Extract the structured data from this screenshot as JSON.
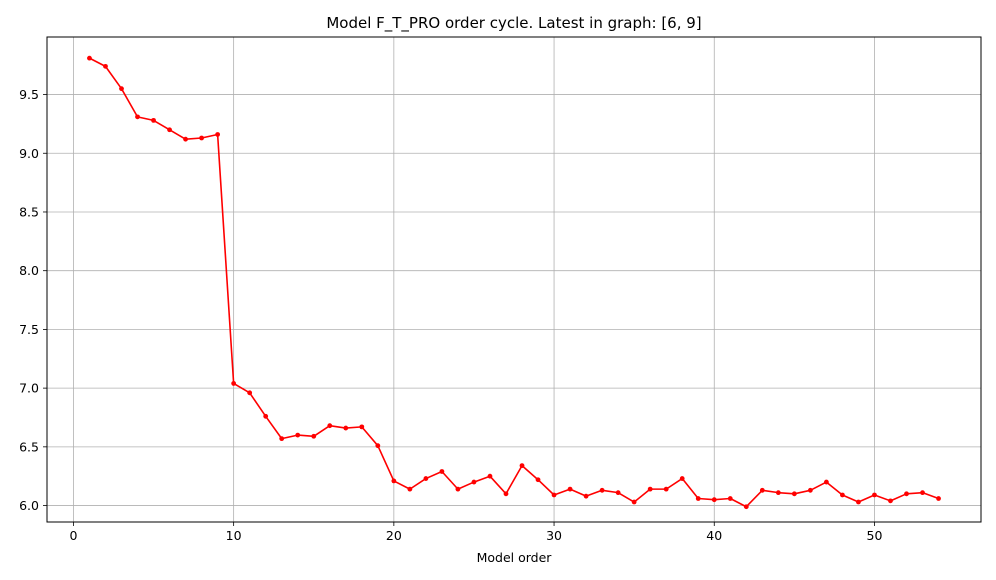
{
  "chart_data": {
    "type": "line",
    "title": "Model F_T_PRO order cycle. Latest in graph: [6, 9]",
    "xlabel": "Model order",
    "ylabel": "",
    "xlim": [
      -1.65,
      56.65
    ],
    "ylim": [
      5.86,
      9.99
    ],
    "grid": true,
    "x_ticks": [
      0,
      10,
      20,
      30,
      40,
      50
    ],
    "y_ticks": [
      6.0,
      6.5,
      7.0,
      7.5,
      8.0,
      8.5,
      9.0,
      9.5
    ],
    "x_tick_labels": [
      "0",
      "10",
      "20",
      "30",
      "40",
      "50"
    ],
    "y_tick_labels": [
      "6.0",
      "6.5",
      "7.0",
      "7.5",
      "8.0",
      "8.5",
      "9.0",
      "9.5"
    ],
    "series": [
      {
        "color": "#ff0000",
        "marker": "circle",
        "x": [
          1,
          2,
          3,
          4,
          5,
          6,
          7,
          8,
          9,
          10,
          11,
          12,
          13,
          14,
          15,
          16,
          17,
          18,
          19,
          20,
          21,
          22,
          23,
          24,
          25,
          26,
          27,
          28,
          29,
          30,
          31,
          32,
          33,
          34,
          35,
          36,
          37,
          38,
          39,
          40,
          41,
          42,
          43,
          44,
          45,
          46,
          47,
          48,
          49,
          50,
          51,
          52,
          53,
          54
        ],
        "y": [
          9.81,
          9.74,
          9.55,
          9.31,
          9.28,
          9.2,
          9.12,
          9.13,
          9.16,
          7.04,
          6.96,
          6.76,
          6.57,
          6.6,
          6.59,
          6.68,
          6.66,
          6.67,
          6.51,
          6.21,
          6.14,
          6.23,
          6.29,
          6.14,
          6.2,
          6.25,
          6.1,
          6.34,
          6.22,
          6.09,
          6.14,
          6.08,
          6.13,
          6.11,
          6.03,
          6.14,
          6.14,
          6.23,
          6.06,
          6.05,
          6.06,
          5.99,
          6.13,
          6.11,
          6.1,
          6.13,
          6.2,
          6.09,
          6.03,
          6.09,
          6.04,
          6.1,
          6.11,
          6.06
        ]
      }
    ]
  }
}
